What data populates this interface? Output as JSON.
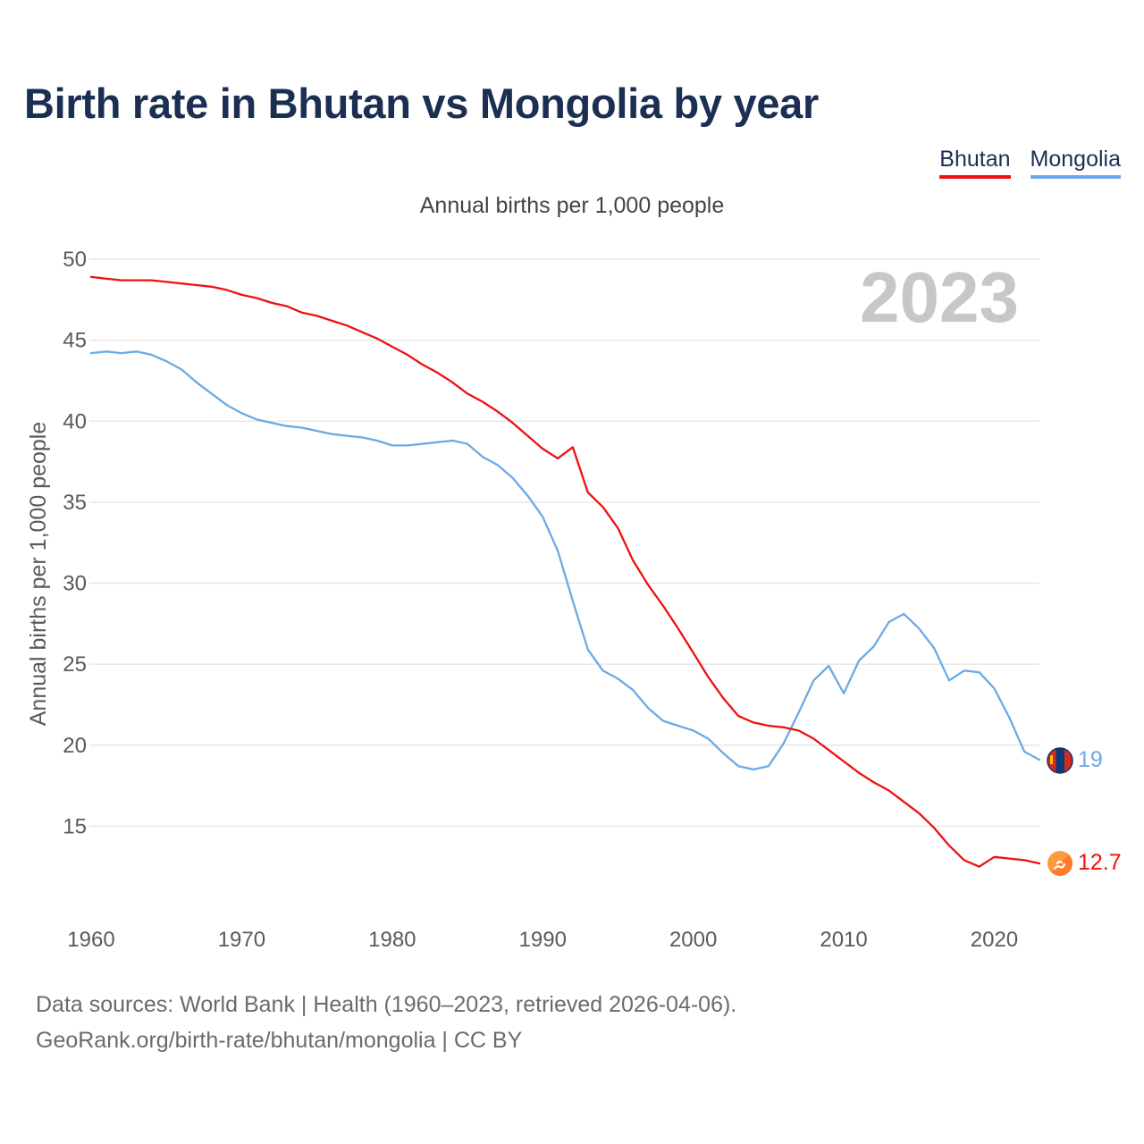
{
  "title": "Birth rate in Bhutan vs Mongolia by year",
  "subtitle": "Annual births per 1,000 people",
  "year_label": "2023",
  "footer": {
    "line1": "Data sources: World Bank | Health (1960–2023, retrieved 2026-04-06).",
    "line2": "GeoRank.org/birth-rate/bhutan/mongolia | CC BY"
  },
  "colors": {
    "bhutan": "#ee1111",
    "mongolia": "#6aaae6",
    "title": "#1b2f52",
    "grid": "#e3e3e3"
  },
  "chart_data": {
    "type": "line",
    "title": "Birth rate in Bhutan vs Mongolia by year",
    "subtitle": "Annual births per 1,000 people",
    "xlabel": "",
    "ylabel": "Annual births per 1,000 people",
    "xlim": [
      1960,
      2023
    ],
    "ylim": [
      10,
      50
    ],
    "y_ticks": [
      15,
      20,
      25,
      30,
      35,
      40,
      45,
      50
    ],
    "x_ticks": [
      1960,
      1970,
      1980,
      1990,
      2000,
      2010,
      2020
    ],
    "grid": true,
    "legend_position": "top-right",
    "x": [
      1960,
      1961,
      1962,
      1963,
      1964,
      1965,
      1966,
      1967,
      1968,
      1969,
      1970,
      1971,
      1972,
      1973,
      1974,
      1975,
      1976,
      1977,
      1978,
      1979,
      1980,
      1981,
      1982,
      1983,
      1984,
      1985,
      1986,
      1987,
      1988,
      1989,
      1990,
      1991,
      1992,
      1993,
      1994,
      1995,
      1996,
      1997,
      1998,
      1999,
      2000,
      2001,
      2002,
      2003,
      2004,
      2005,
      2006,
      2007,
      2008,
      2009,
      2010,
      2011,
      2012,
      2013,
      2014,
      2015,
      2016,
      2017,
      2018,
      2019,
      2020,
      2021,
      2022,
      2023
    ],
    "series": [
      {
        "name": "Bhutan",
        "color": "#ee1111",
        "end_label": "12.7",
        "values": [
          48.9,
          48.8,
          48.7,
          48.7,
          48.7,
          48.6,
          48.5,
          48.4,
          48.3,
          48.1,
          47.8,
          47.6,
          47.3,
          47.1,
          46.7,
          46.5,
          46.2,
          45.9,
          45.5,
          45.1,
          44.6,
          44.1,
          43.5,
          43.0,
          42.4,
          41.7,
          41.2,
          40.6,
          39.9,
          39.1,
          38.3,
          37.7,
          38.4,
          35.6,
          34.7,
          33.4,
          31.4,
          29.9,
          28.6,
          27.2,
          25.7,
          24.2,
          22.9,
          21.8,
          21.4,
          21.2,
          21.1,
          20.9,
          20.4,
          19.7,
          19.0,
          18.3,
          17.7,
          17.2,
          16.5,
          15.8,
          14.9,
          13.8,
          12.9,
          12.5,
          13.1,
          13.0,
          12.9,
          12.7
        ]
      },
      {
        "name": "Mongolia",
        "color": "#6aaae6",
        "end_label": "19",
        "values": [
          44.2,
          44.3,
          44.2,
          44.3,
          44.1,
          43.7,
          43.2,
          42.4,
          41.7,
          41.0,
          40.5,
          40.1,
          39.9,
          39.7,
          39.6,
          39.4,
          39.2,
          39.1,
          39.0,
          38.8,
          38.5,
          38.5,
          38.6,
          38.7,
          38.8,
          38.6,
          37.8,
          37.3,
          36.5,
          35.4,
          34.1,
          32.0,
          28.9,
          25.9,
          24.6,
          24.1,
          23.4,
          22.3,
          21.5,
          21.2,
          20.9,
          20.4,
          19.5,
          18.7,
          18.5,
          18.7,
          20.1,
          22.0,
          24.0,
          24.9,
          23.2,
          25.2,
          26.1,
          27.6,
          28.1,
          27.2,
          26.0,
          24.0,
          24.6,
          24.5,
          23.5,
          21.7,
          19.6,
          19.1
        ]
      }
    ]
  }
}
